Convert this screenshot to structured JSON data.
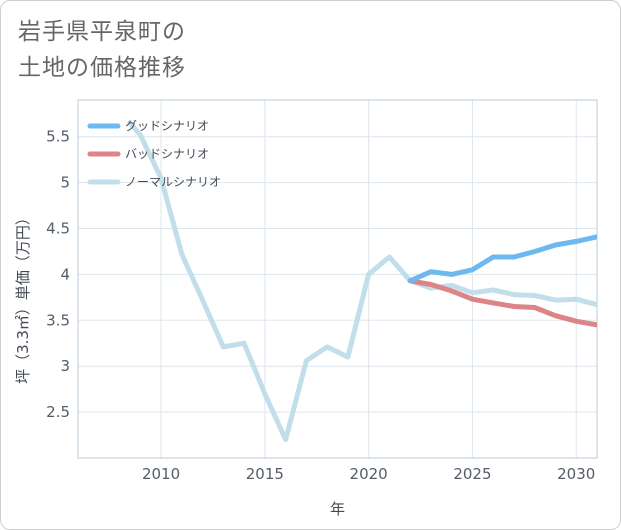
{
  "chart_data": {
    "type": "line",
    "title_lines": [
      "岩手県平泉町の",
      "土地の価格推移"
    ],
    "xlabel": "年",
    "ylabel": "坪（3.3㎡）単価（万円）",
    "xlim": [
      2006,
      2031
    ],
    "ylim": [
      2.0,
      5.9
    ],
    "x_ticks": [
      2010,
      2015,
      2020,
      2025,
      2030
    ],
    "x_tick_labels": [
      "2010",
      "2015",
      "2020",
      "2025",
      "2030"
    ],
    "y_ticks": [
      2.5,
      3,
      3.5,
      4,
      4.5,
      5,
      5.5
    ],
    "y_tick_labels": [
      "2.5",
      "3",
      "3.5",
      "4",
      "4.5",
      "5",
      "5.5"
    ],
    "grid": true,
    "legend_position": "top-left",
    "series": [
      {
        "name": "グッドシナリオ",
        "color": "#6db8ee",
        "x": [
          2022,
          2023,
          2024,
          2025,
          2026,
          2027,
          2028,
          2029,
          2030,
          2031
        ],
        "values": [
          3.93,
          4.03,
          4.0,
          4.05,
          4.19,
          4.19,
          4.25,
          4.32,
          4.36,
          4.41
        ]
      },
      {
        "name": "バッドシナリオ",
        "color": "#dc8488",
        "x": [
          2022,
          2023,
          2024,
          2025,
          2026,
          2027,
          2028,
          2029,
          2030,
          2031
        ],
        "values": [
          3.93,
          3.89,
          3.82,
          3.73,
          3.69,
          3.65,
          3.64,
          3.55,
          3.49,
          3.45
        ]
      },
      {
        "name": "ノーマルシナリオ",
        "color": "#c2deea",
        "x": [
          2008.5,
          2009,
          2010,
          2011,
          2012,
          2013,
          2014,
          2015,
          2016,
          2017,
          2018,
          2019,
          2020,
          2021,
          2022,
          2023,
          2024,
          2025,
          2026,
          2027,
          2028,
          2029,
          2030,
          2031
        ],
        "values": [
          5.65,
          5.52,
          5.05,
          4.22,
          3.72,
          3.21,
          3.25,
          2.7,
          2.2,
          3.06,
          3.21,
          3.1,
          4.0,
          4.19,
          3.93,
          3.85,
          3.88,
          3.8,
          3.83,
          3.78,
          3.77,
          3.72,
          3.73,
          3.67
        ]
      }
    ]
  }
}
